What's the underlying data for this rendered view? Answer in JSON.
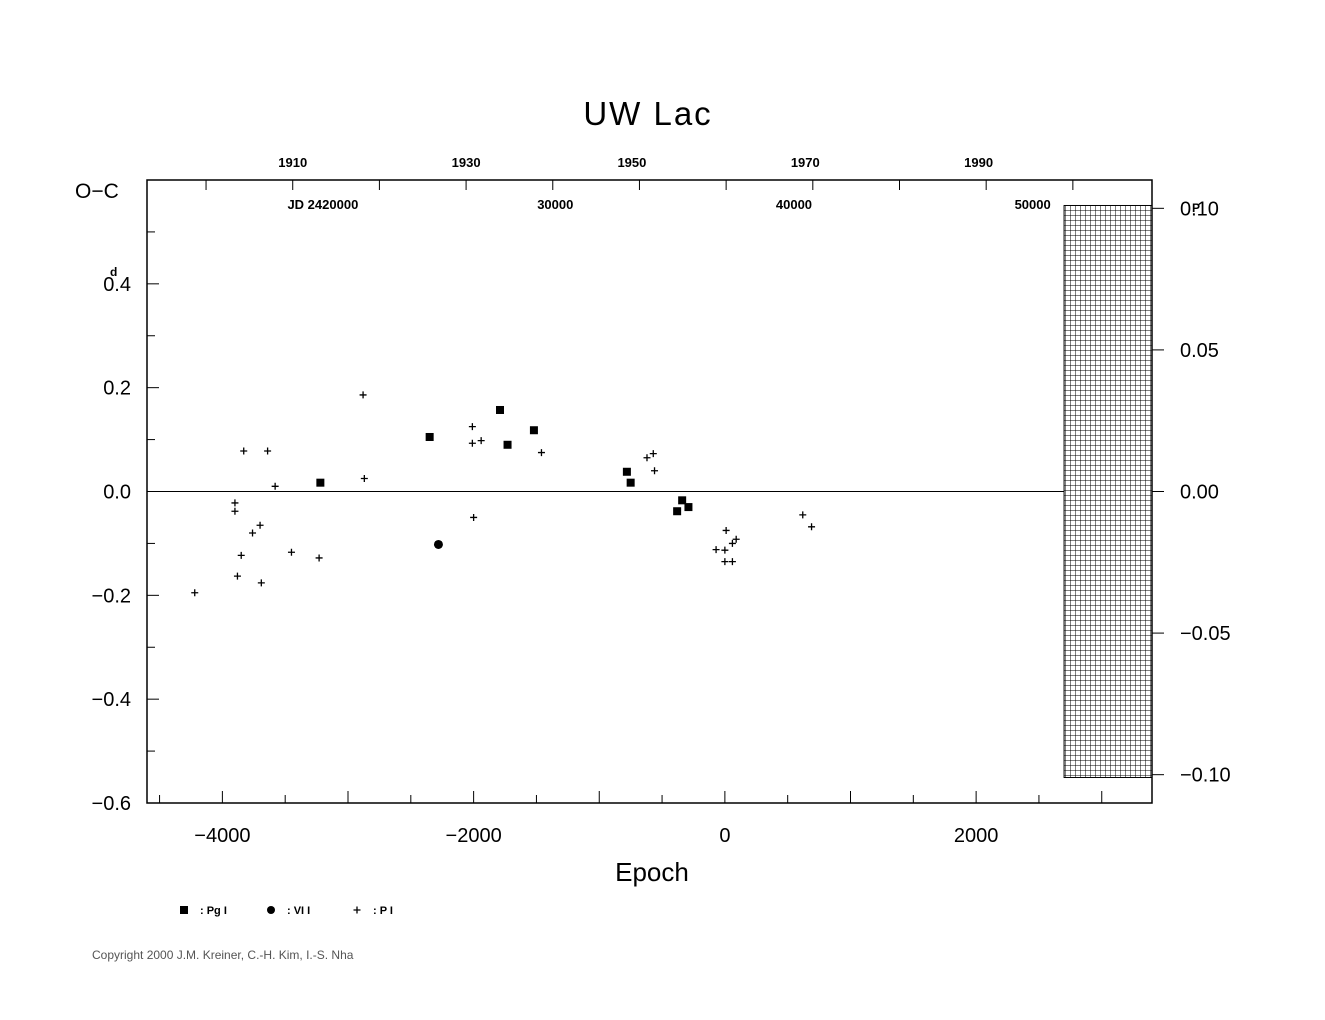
{
  "chart_data": {
    "type": "scatter",
    "title": "UW  Lac",
    "xlabel": "Epoch",
    "ylabel": "O−C",
    "y_unit_label": "d",
    "y2_unit_label": "P",
    "xlim": [
      -4600,
      3400
    ],
    "ylim": [
      -0.6,
      0.6
    ],
    "y2lim": [
      -0.11,
      0.11
    ],
    "x_ticks": [
      {
        "v": -4000,
        "label": "−4000"
      },
      {
        "v": -2000,
        "label": "−2000"
      },
      {
        "v": 0,
        "label": "0"
      },
      {
        "v": 2000,
        "label": "2000"
      }
    ],
    "y_ticks": [
      {
        "v": 0.4,
        "label": "0.4"
      },
      {
        "v": 0.2,
        "label": "0.2"
      },
      {
        "v": 0.0,
        "label": "0.0"
      },
      {
        "v": -0.2,
        "label": "−0.2"
      },
      {
        "v": -0.4,
        "label": "−0.4"
      },
      {
        "v": -0.6,
        "label": "−0.6"
      }
    ],
    "y2_ticks": [
      {
        "v": 0.1,
        "label": "0.10"
      },
      {
        "v": 0.05,
        "label": "0.05"
      },
      {
        "v": 0.0,
        "label": "0.00"
      },
      {
        "v": -0.05,
        "label": "−0.05"
      },
      {
        "v": -0.1,
        "label": "−0.10"
      }
    ],
    "top_year_ticks": [
      {
        "x": -3440,
        "label": "1910"
      },
      {
        "x": -2060,
        "label": "1930"
      },
      {
        "x": -740,
        "label": "1950"
      },
      {
        "x": 640,
        "label": "1970"
      },
      {
        "x": 2020,
        "label": "1990"
      }
    ],
    "top_jd_ticks": [
      {
        "x": -3200,
        "label": "JD  2420000"
      },
      {
        "x": -1350,
        "label": "30000"
      },
      {
        "x": 550,
        "label": "40000"
      },
      {
        "x": 2450,
        "label": "50000"
      }
    ],
    "grid": false,
    "hatched_region_x": [
      2700,
      3400
    ],
    "series": [
      {
        "name": "Pg I",
        "marker": "square",
        "points": [
          [
            -3220,
            0.017
          ],
          [
            -2350,
            0.105
          ],
          [
            -1790,
            0.157
          ],
          [
            -1730,
            0.09
          ],
          [
            -1520,
            0.118
          ],
          [
            -780,
            0.038
          ],
          [
            -750,
            0.017
          ],
          [
            -380,
            -0.038
          ],
          [
            -340,
            -0.017
          ],
          [
            -290,
            -0.03
          ]
        ]
      },
      {
        "name": "VI I",
        "marker": "circle",
        "points": [
          [
            -2280,
            -0.102
          ]
        ]
      },
      {
        "name": "P I",
        "marker": "plus",
        "points": [
          [
            -4220,
            -0.195
          ],
          [
            -3900,
            -0.022
          ],
          [
            -3900,
            -0.038
          ],
          [
            -3880,
            -0.163
          ],
          [
            -3850,
            -0.123
          ],
          [
            -3830,
            0.078
          ],
          [
            -3760,
            -0.08
          ],
          [
            -3700,
            -0.065
          ],
          [
            -3690,
            -0.176
          ],
          [
            -3640,
            0.078
          ],
          [
            -3580,
            0.01
          ],
          [
            -3450,
            -0.117
          ],
          [
            -3230,
            -0.128
          ],
          [
            -2880,
            0.186
          ],
          [
            -2870,
            0.025
          ],
          [
            -2010,
            0.125
          ],
          [
            -2010,
            0.093
          ],
          [
            -2000,
            -0.05
          ],
          [
            -1940,
            0.098
          ],
          [
            -1460,
            0.075
          ],
          [
            -620,
            0.065
          ],
          [
            -570,
            0.073
          ],
          [
            -560,
            0.04
          ],
          [
            -70,
            -0.112
          ],
          [
            0,
            -0.113
          ],
          [
            0,
            -0.135
          ],
          [
            10,
            -0.075
          ],
          [
            60,
            -0.1
          ],
          [
            60,
            -0.135
          ],
          [
            90,
            -0.092
          ],
          [
            620,
            -0.045
          ],
          [
            690,
            -0.068
          ]
        ]
      }
    ],
    "legend_position": "bottom-left"
  },
  "copyright": "Copyright 2000 J.M. Kreiner, C.-H. Kim, I.-S. Nha"
}
